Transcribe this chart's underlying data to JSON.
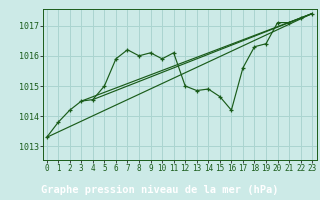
{
  "bg_color": "#cceae7",
  "plot_bg_color": "#cceae7",
  "footer_bg_color": "#2d6a2d",
  "grid_color": "#aad4d0",
  "line_color": "#1a5c1a",
  "marker_color": "#1a5c1a",
  "xlabel": "Graphe pression niveau de la mer (hPa)",
  "xlabel_fontsize": 7.5,
  "ytick_fontsize": 6,
  "xtick_fontsize": 5.5,
  "yticks": [
    1013,
    1014,
    1015,
    1016,
    1017
  ],
  "xticks": [
    0,
    1,
    2,
    3,
    4,
    5,
    6,
    7,
    8,
    9,
    10,
    11,
    12,
    13,
    14,
    15,
    16,
    17,
    18,
    19,
    20,
    21,
    22,
    23
  ],
  "ylim": [
    1012.55,
    1017.55
  ],
  "xlim": [
    -0.3,
    23.4
  ],
  "series1_x": [
    0,
    1,
    2,
    3,
    4,
    5,
    6,
    7,
    8,
    9,
    10,
    11,
    12,
    13,
    14,
    15,
    16,
    17,
    18,
    19,
    20,
    21,
    22,
    23
  ],
  "series1_y": [
    1013.3,
    1013.8,
    1014.2,
    1014.5,
    1014.55,
    1015.0,
    1015.9,
    1016.2,
    1016.0,
    1016.1,
    1015.9,
    1016.1,
    1015.0,
    1014.85,
    1014.9,
    1014.65,
    1014.2,
    1015.6,
    1016.3,
    1016.4,
    1017.1,
    1017.1,
    1017.25,
    1017.4
  ],
  "series2_x": [
    0,
    23
  ],
  "series2_y": [
    1013.3,
    1017.4
  ],
  "series3_x": [
    3,
    23
  ],
  "series3_y": [
    1014.5,
    1017.4
  ],
  "series4_x": [
    4,
    23
  ],
  "series4_y": [
    1014.55,
    1017.4
  ]
}
